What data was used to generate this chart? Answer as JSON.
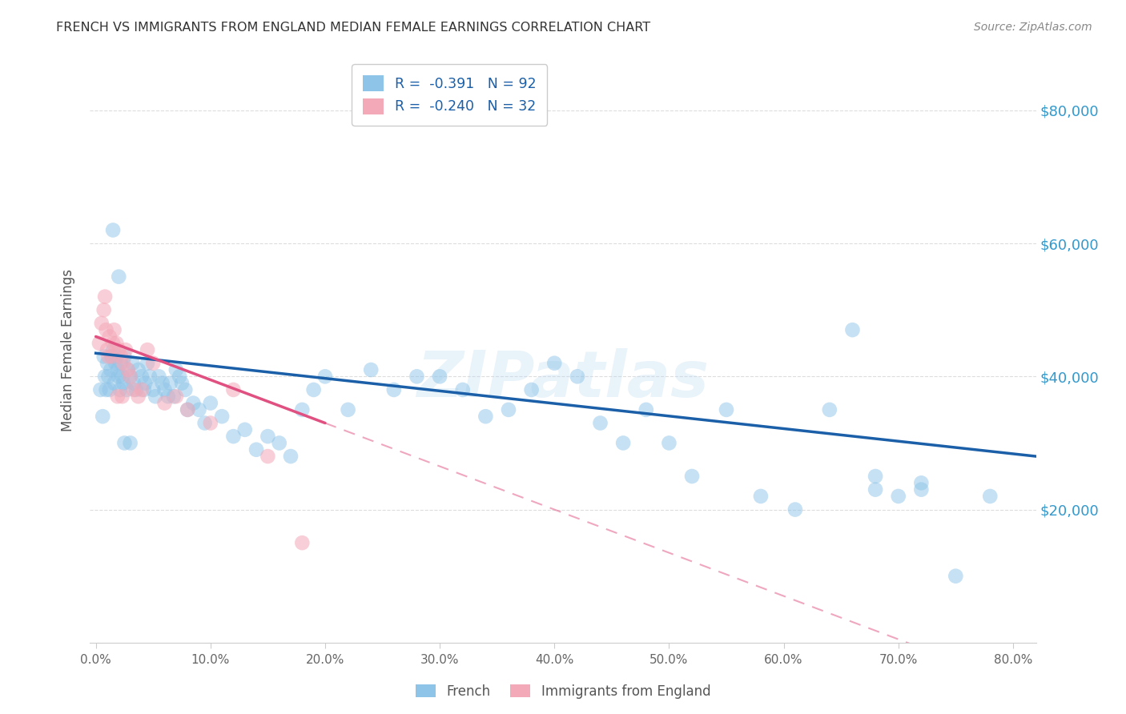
{
  "title": "FRENCH VS IMMIGRANTS FROM ENGLAND MEDIAN FEMALE EARNINGS CORRELATION CHART",
  "source": "Source: ZipAtlas.com",
  "ylabel": "Median Female Earnings",
  "xlabel_ticks": [
    "0.0%",
    "10.0%",
    "20.0%",
    "30.0%",
    "40.0%",
    "50.0%",
    "60.0%",
    "70.0%",
    "80.0%"
  ],
  "ytick_labels": [
    "$20,000",
    "$40,000",
    "$60,000",
    "$80,000"
  ],
  "ytick_values": [
    20000,
    40000,
    60000,
    80000
  ],
  "ylim": [
    0,
    88000
  ],
  "xlim": [
    -0.005,
    0.82
  ],
  "watermark": "ZIPatlas",
  "legend1_label": "R =  -0.391   N = 92",
  "legend2_label": "R =  -0.240   N = 32",
  "french_color": "#8ec4e8",
  "england_color": "#f4a9b8",
  "trendline_french_color": "#1a5fa8",
  "trendline_england_color": "#e05080",
  "french_x": [
    0.004,
    0.006,
    0.007,
    0.008,
    0.009,
    0.01,
    0.011,
    0.012,
    0.013,
    0.014,
    0.015,
    0.016,
    0.017,
    0.018,
    0.019,
    0.02,
    0.021,
    0.022,
    0.023,
    0.024,
    0.025,
    0.027,
    0.028,
    0.03,
    0.032,
    0.033,
    0.035,
    0.037,
    0.04,
    0.042,
    0.043,
    0.045,
    0.047,
    0.05,
    0.052,
    0.055,
    0.058,
    0.06,
    0.063,
    0.065,
    0.068,
    0.07,
    0.073,
    0.075,
    0.078,
    0.08,
    0.085,
    0.09,
    0.095,
    0.1,
    0.11,
    0.12,
    0.13,
    0.14,
    0.15,
    0.16,
    0.17,
    0.18,
    0.19,
    0.2,
    0.22,
    0.24,
    0.26,
    0.28,
    0.3,
    0.32,
    0.34,
    0.36,
    0.38,
    0.4,
    0.42,
    0.44,
    0.46,
    0.48,
    0.5,
    0.52,
    0.55,
    0.58,
    0.61,
    0.64,
    0.66,
    0.68,
    0.7,
    0.72,
    0.75,
    0.78,
    0.68,
    0.72,
    0.015,
    0.02,
    0.025,
    0.03
  ],
  "french_y": [
    38000,
    34000,
    43000,
    40000,
    38000,
    42000,
    40000,
    38000,
    41000,
    43000,
    44000,
    39000,
    42000,
    43000,
    41000,
    40000,
    38000,
    42000,
    40000,
    39000,
    43000,
    38000,
    41000,
    40000,
    42000,
    39000,
    38000,
    41000,
    40000,
    38000,
    39000,
    42000,
    40000,
    38000,
    37000,
    40000,
    39000,
    38000,
    37000,
    39000,
    37000,
    41000,
    40000,
    39000,
    38000,
    35000,
    36000,
    35000,
    33000,
    36000,
    34000,
    31000,
    32000,
    29000,
    31000,
    30000,
    28000,
    35000,
    38000,
    40000,
    35000,
    41000,
    38000,
    40000,
    40000,
    38000,
    34000,
    35000,
    38000,
    42000,
    40000,
    33000,
    30000,
    35000,
    30000,
    25000,
    35000,
    22000,
    20000,
    35000,
    47000,
    25000,
    22000,
    24000,
    10000,
    22000,
    23000,
    23000,
    62000,
    55000,
    30000,
    30000
  ],
  "england_x": [
    0.003,
    0.005,
    0.007,
    0.009,
    0.01,
    0.012,
    0.014,
    0.016,
    0.018,
    0.02,
    0.022,
    0.024,
    0.026,
    0.028,
    0.03,
    0.033,
    0.037,
    0.04,
    0.045,
    0.05,
    0.06,
    0.07,
    0.08,
    0.1,
    0.12,
    0.15,
    0.18,
    0.008,
    0.011,
    0.015,
    0.019,
    0.023
  ],
  "england_y": [
    45000,
    48000,
    50000,
    47000,
    44000,
    46000,
    43000,
    47000,
    45000,
    44000,
    43000,
    42000,
    44000,
    41000,
    40000,
    38000,
    37000,
    38000,
    44000,
    42000,
    36000,
    37000,
    35000,
    33000,
    38000,
    28000,
    15000,
    52000,
    43000,
    45000,
    37000,
    37000
  ],
  "background_color": "#ffffff",
  "grid_color": "#dddddd",
  "title_color": "#333333",
  "axis_label_color": "#555555",
  "ytick_color": "#3399cc",
  "source_color": "#888888"
}
